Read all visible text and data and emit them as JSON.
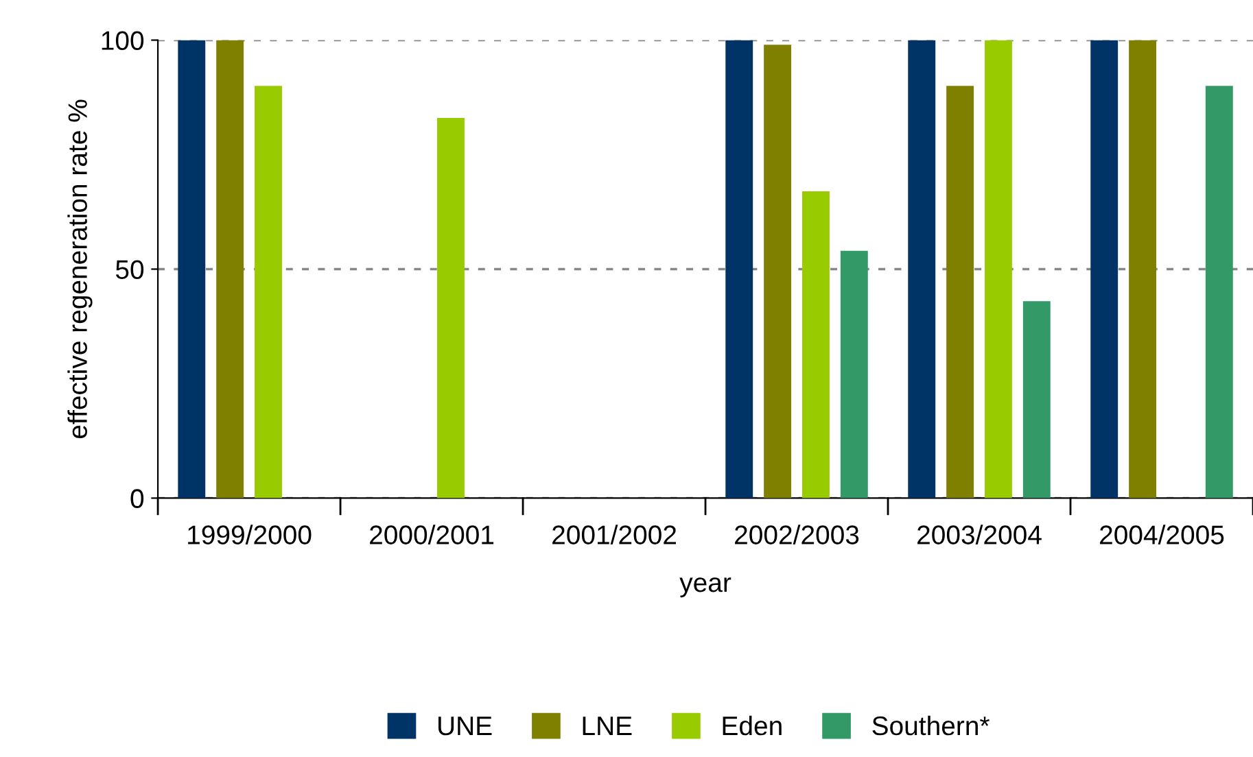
{
  "chart_data": {
    "type": "bar",
    "xlabel": "year",
    "ylabel": "effective regeneration rate %",
    "categories": [
      "1999/2000",
      "2000/2001",
      "2001/2002",
      "2002/2003",
      "2003/2004",
      "2004/2005"
    ],
    "series": [
      {
        "name": "UNE",
        "color": "#003366",
        "values": [
          100,
          null,
          null,
          100,
          100,
          100
        ]
      },
      {
        "name": "LNE",
        "color": "#808000",
        "values": [
          100,
          null,
          null,
          99,
          90,
          100
        ]
      },
      {
        "name": "Eden",
        "color": "#99cc00",
        "values": [
          90,
          83,
          null,
          67,
          100,
          null
        ]
      },
      {
        "name": "Southern*",
        "color": "#339966",
        "values": [
          null,
          null,
          null,
          54,
          43,
          90
        ]
      }
    ],
    "ylim": [
      0,
      100
    ],
    "yticks": [
      0,
      50,
      100
    ],
    "grid": "y",
    "legend": "bottom"
  }
}
